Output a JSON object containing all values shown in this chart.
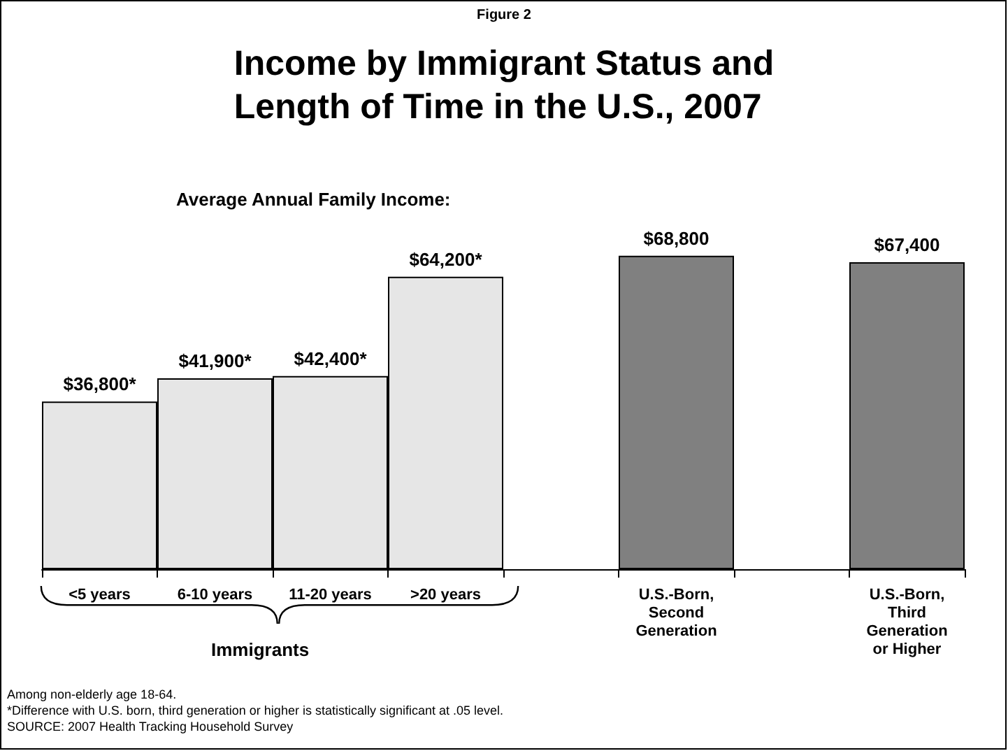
{
  "chart_data": {
    "type": "bar",
    "title": "Income by Immigrant Status and\nLength of Time in the U.S., 2007",
    "subtitle": "Average Annual Family Income:",
    "categories": [
      "<5 years",
      "6-10 years",
      "11-20 years",
      ">20 years",
      null,
      "U.S.-Born,\nSecond\nGeneration",
      null,
      "U.S.-Born,\nThird\nGeneration\nor Higher"
    ],
    "values": [
      36800,
      41900,
      42400,
      64200,
      null,
      68800,
      null,
      67400
    ],
    "value_labels": [
      "$36,800*",
      "$41,900*",
      "$42,400*",
      "$64,200*",
      null,
      "$68,800",
      null,
      "$67,400"
    ],
    "colors": [
      "#e6e6e6",
      "#e6e6e6",
      "#e6e6e6",
      "#e6e6e6",
      null,
      "#808080",
      null,
      "#808080"
    ],
    "annotations": [
      "Figure 2",
      "Immigrants",
      "Among non-elderly age 18-64.",
      "*Difference with U.S. born, third generation or higher is statistically significant at .05 level.",
      "SOURCE: 2007 Health Tracking Household Survey"
    ]
  }
}
